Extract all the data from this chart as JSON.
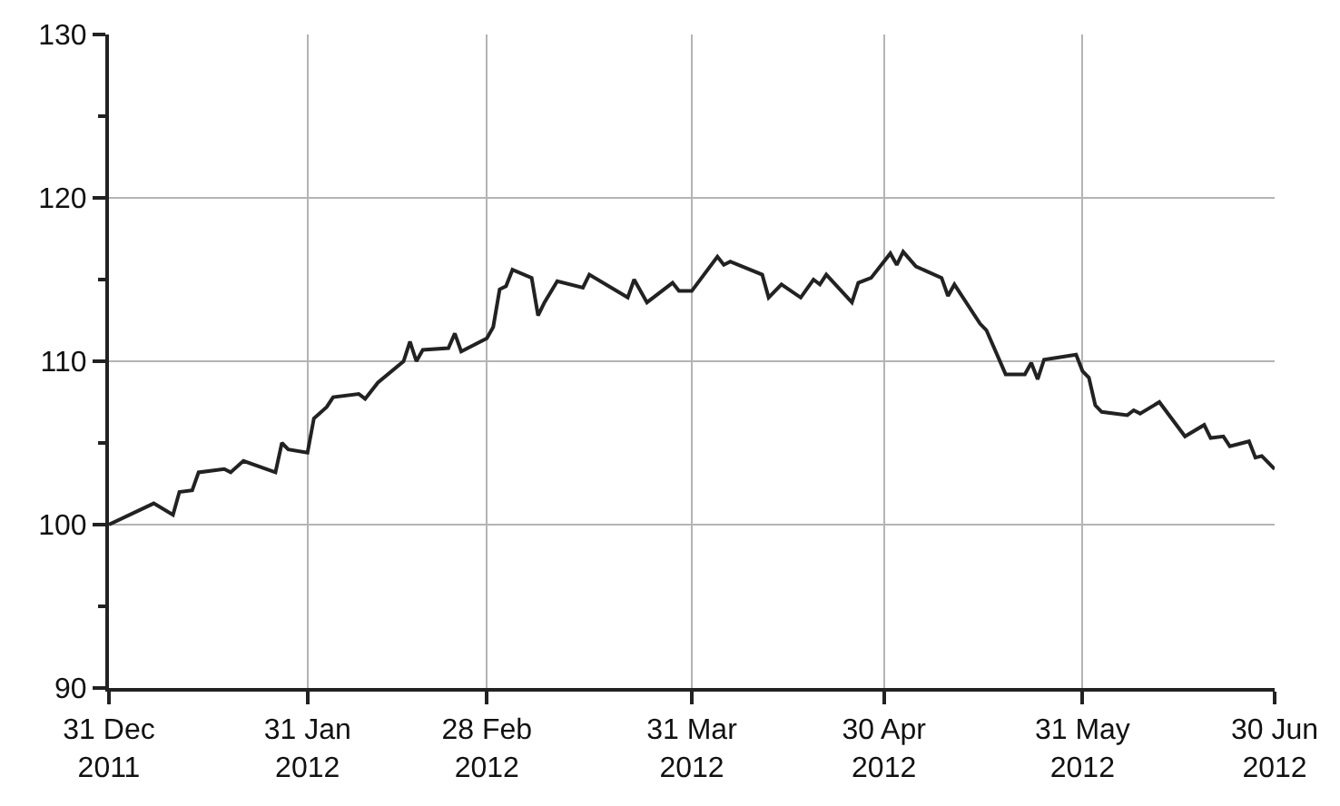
{
  "chart_data": {
    "type": "line",
    "x": [
      "2011-12-31",
      "2012-01-07",
      "2012-01-10",
      "2012-01-11",
      "2012-01-13",
      "2012-01-14",
      "2012-01-18",
      "2012-01-19",
      "2012-01-21",
      "2012-01-26",
      "2012-01-27",
      "2012-01-28",
      "2012-01-31",
      "2012-02-01",
      "2012-02-03",
      "2012-02-04",
      "2012-02-08",
      "2012-02-09",
      "2012-02-11",
      "2012-02-15",
      "2012-02-16",
      "2012-02-17",
      "2012-02-18",
      "2012-02-22",
      "2012-02-23",
      "2012-02-24",
      "2012-02-28",
      "2012-02-29",
      "2012-03-01",
      "2012-03-02",
      "2012-03-03",
      "2012-03-06",
      "2012-03-07",
      "2012-03-08",
      "2012-03-10",
      "2012-03-14",
      "2012-03-15",
      "2012-03-21",
      "2012-03-22",
      "2012-03-24",
      "2012-03-28",
      "2012-03-29",
      "2012-03-31",
      "2012-04-04",
      "2012-04-05",
      "2012-04-06",
      "2012-04-11",
      "2012-04-12",
      "2012-04-14",
      "2012-04-17",
      "2012-04-19",
      "2012-04-20",
      "2012-04-21",
      "2012-04-25",
      "2012-04-26",
      "2012-04-28",
      "2012-05-01",
      "2012-05-02",
      "2012-05-03",
      "2012-05-05",
      "2012-05-09",
      "2012-05-10",
      "2012-05-11",
      "2012-05-15",
      "2012-05-16",
      "2012-05-19",
      "2012-05-22",
      "2012-05-23",
      "2012-05-24",
      "2012-05-25",
      "2012-05-30",
      "2012-05-31",
      "2012-06-01",
      "2012-06-02",
      "2012-06-03",
      "2012-06-07",
      "2012-06-08",
      "2012-06-09",
      "2012-06-12",
      "2012-06-16",
      "2012-06-19",
      "2012-06-20",
      "2012-06-22",
      "2012-06-23",
      "2012-06-26",
      "2012-06-27",
      "2012-06-28",
      "2012-06-30"
    ],
    "series": [
      {
        "color": "#222222",
        "values": [
          100.0,
          101.3,
          100.6,
          102.0,
          102.1,
          103.2,
          103.4,
          103.2,
          103.9,
          103.2,
          105.0,
          104.6,
          104.4,
          106.5,
          107.2,
          107.8,
          108.0,
          107.7,
          108.7,
          110.0,
          111.2,
          110.0,
          110.7,
          110.8,
          111.7,
          110.6,
          111.4,
          112.1,
          114.4,
          114.6,
          115.6,
          115.1,
          112.8,
          113.6,
          114.9,
          114.5,
          115.3,
          113.9,
          115.0,
          113.6,
          114.8,
          114.3,
          114.3,
          116.4,
          115.9,
          116.1,
          115.3,
          113.9,
          114.7,
          113.9,
          115.0,
          114.7,
          115.3,
          113.6,
          114.8,
          115.1,
          116.6,
          115.9,
          116.7,
          115.8,
          115.1,
          114.0,
          114.7,
          112.3,
          111.9,
          109.2,
          109.2,
          109.9,
          108.9,
          110.1,
          110.4,
          109.4,
          109.0,
          107.3,
          106.9,
          106.7,
          107.0,
          106.8,
          107.5,
          105.4,
          106.1,
          105.3,
          105.4,
          104.8,
          105.1,
          104.1,
          104.2,
          103.4
        ]
      }
    ],
    "xlim": [
      "2011-12-31",
      "2012-06-30"
    ],
    "xticks": [
      {
        "value": "2011-12-31",
        "label": "31 Dec\n2011"
      },
      {
        "value": "2012-01-31",
        "label": "31 Jan\n2012"
      },
      {
        "value": "2012-02-28",
        "label": "28 Feb\n2012"
      },
      {
        "value": "2012-03-31",
        "label": "31 Mar\n2012"
      },
      {
        "value": "2012-04-30",
        "label": "30 Apr\n2012"
      },
      {
        "value": "2012-05-31",
        "label": "31 May\n2012"
      },
      {
        "value": "2012-06-30",
        "label": "30 Jun\n2012"
      }
    ],
    "ylim": [
      90,
      130
    ],
    "yticks": [
      90,
      {
        "value": 95,
        "label": null
      },
      100,
      {
        "value": 105,
        "label": null
      },
      110,
      {
        "value": 115,
        "label": null
      },
      120,
      {
        "value": 125,
        "label": null
      },
      130
    ],
    "grid": true,
    "marker": "none",
    "line_style": "solid"
  }
}
